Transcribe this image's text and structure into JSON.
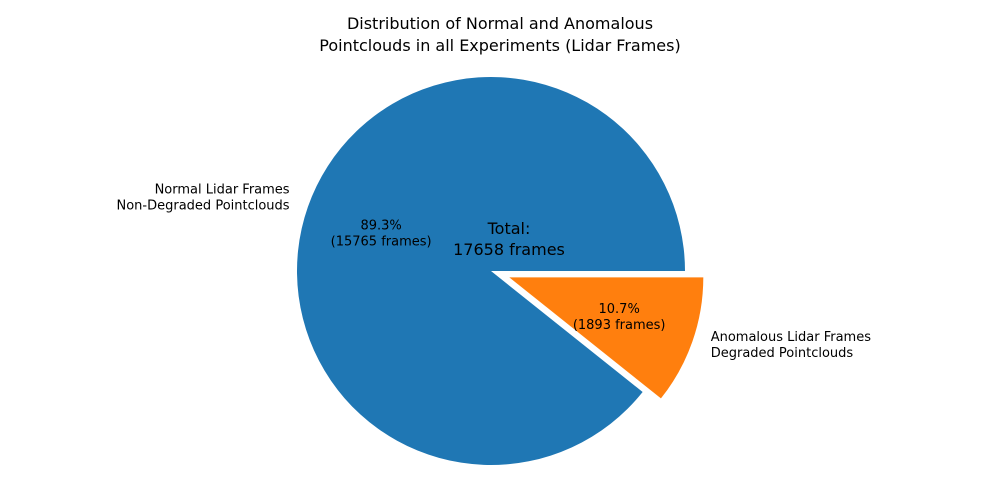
{
  "chart_data": {
    "type": "pie",
    "title": [
      "Distribution of Normal and Anomalous",
      "Pointclouds in all Experiments (Lidar Frames)"
    ],
    "slices": [
      {
        "label": [
          "Normal Lidar Frames",
          "Non-Degraded Pointclouds"
        ],
        "value": 15765,
        "pct_text": [
          "89.3%",
          "(15765 frames)"
        ],
        "color": "#1f77b4",
        "explode": 0
      },
      {
        "label": [
          "Anomalous Lidar Frames",
          "Degraded Pointclouds"
        ],
        "value": 1893,
        "pct_text": [
          "10.7%",
          "(1893 frames)"
        ],
        "color": "#ff7f0e",
        "explode": 0.1
      }
    ],
    "center_text": [
      "Total:",
      "17658 frames"
    ],
    "start_angle": 0,
    "counterclockwise": true
  }
}
